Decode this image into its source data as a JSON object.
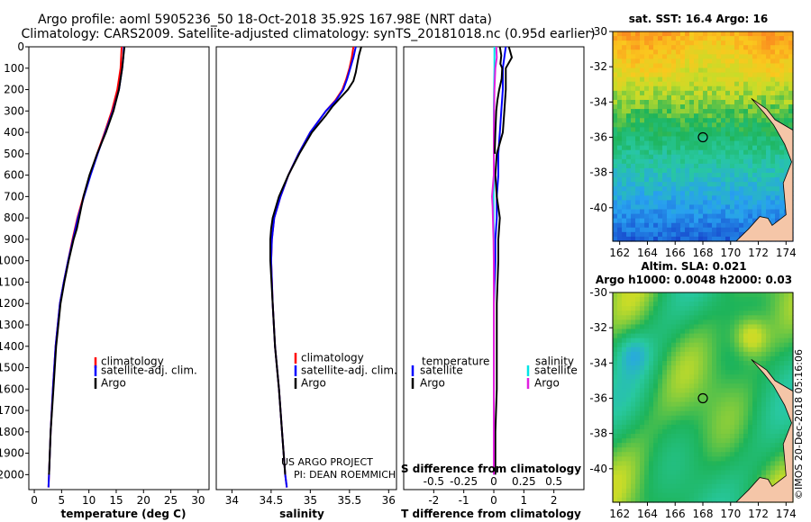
{
  "title_line1": "Argo profile: aoml 5905236_50 18-Oct-2018 35.92S 167.98E (NRT data)",
  "title_line2": "Climatology: CARS2009. Satellite-adjusted climatology: synTS_20181018.nc (0.95d earlier)",
  "credit_line1": "US ARGO PROJECT",
  "credit_line2": "PI: DEAN ROEMMICH",
  "imos_stamp": "©IMOS 20-Dec-2018 05:16:06",
  "colors": {
    "climatology": "#ff0000",
    "satellite": "#0000ff",
    "argo": "#000000",
    "sal_satellite": "#00e5e5",
    "sal_argo": "#e020e0",
    "land": "#f5c6a8"
  },
  "chart_data": [
    {
      "id": "temperature",
      "type": "line",
      "xlabel": "temperature (deg C)",
      "ylabel": "",
      "xlim": [
        -1,
        32
      ],
      "ylim": [
        2070,
        0
      ],
      "xticks": [
        0,
        5,
        10,
        15,
        20,
        25,
        30
      ],
      "xtick_labels": [
        "0",
        "5",
        "10",
        "15",
        "20",
        "25",
        "30"
      ],
      "yticks": [
        0,
        100,
        200,
        300,
        400,
        500,
        600,
        700,
        800,
        900,
        1000,
        1100,
        1200,
        1300,
        1400,
        1500,
        1600,
        1700,
        1800,
        1900,
        2000
      ],
      "ytick_labels": [
        "0",
        "100",
        "200",
        "300",
        "400",
        "500",
        "600",
        "700",
        "800",
        "900",
        "1000",
        "1100",
        "1200",
        "1300",
        "1400",
        "1500",
        "1600",
        "1700",
        "1800",
        "1900",
        "2000"
      ],
      "legend": [
        "climatology",
        "satellite-adj. clim.",
        "Argo"
      ],
      "series": [
        {
          "name": "climatology",
          "color": "#ff0000",
          "depth": [
            0,
            50,
            100,
            200,
            300,
            400,
            500,
            600,
            700,
            800,
            900,
            1000,
            1100,
            1200,
            1400,
            1600,
            1800,
            2000,
            2060
          ],
          "values": [
            16.0,
            15.9,
            15.8,
            15.2,
            14.2,
            12.9,
            11.5,
            10.2,
            9.0,
            7.9,
            7.0,
            6.2,
            5.4,
            4.7,
            3.9,
            3.4,
            3.0,
            2.7,
            2.6
          ]
        },
        {
          "name": "satellite-adj. clim.",
          "color": "#0000ff",
          "depth": [
            0,
            50,
            100,
            200,
            300,
            400,
            500,
            600,
            700,
            800,
            900,
            1000,
            1100,
            1200,
            1400,
            1600,
            1800,
            2000,
            2060
          ],
          "values": [
            16.4,
            16.3,
            16.1,
            15.5,
            14.4,
            13.0,
            11.6,
            10.3,
            9.1,
            8.0,
            7.1,
            6.2,
            5.4,
            4.7,
            3.9,
            3.4,
            3.0,
            2.7,
            2.6
          ]
        },
        {
          "name": "Argo",
          "color": "#000000",
          "depth": [
            0,
            50,
            100,
            200,
            300,
            400,
            500,
            600,
            700,
            800,
            850,
            900,
            1000,
            1100,
            1200,
            1400,
            1600,
            1800,
            2000
          ],
          "values": [
            16.5,
            16.3,
            16.1,
            15.5,
            14.5,
            13.1,
            11.5,
            10.1,
            9.0,
            8.2,
            7.8,
            7.2,
            6.3,
            5.5,
            4.8,
            4.0,
            3.5,
            3.0,
            2.7
          ]
        }
      ]
    },
    {
      "id": "salinity",
      "type": "line",
      "xlabel": "salinity",
      "ylabel": "",
      "xlim": [
        33.8,
        36.1
      ],
      "ylim": [
        2070,
        0
      ],
      "xticks": [
        34,
        34.5,
        35,
        35.5,
        36
      ],
      "xtick_labels": [
        "34",
        "34.5",
        "35",
        "35.5",
        "36"
      ],
      "legend": [
        "climatology",
        "satellite-adj. clim.",
        "Argo"
      ],
      "series": [
        {
          "name": "climatology",
          "color": "#ff0000",
          "depth": [
            0,
            50,
            100,
            150,
            200,
            250,
            300,
            400,
            500,
            600,
            700,
            800,
            900,
            1000,
            1200,
            1400,
            1600,
            1800,
            2000,
            2060
          ],
          "values": [
            35.55,
            35.53,
            35.5,
            35.46,
            35.41,
            35.32,
            35.2,
            35.0,
            34.85,
            34.72,
            34.62,
            34.54,
            34.51,
            34.5,
            34.52,
            34.55,
            34.6,
            34.64,
            34.68,
            34.7
          ]
        },
        {
          "name": "satellite-adj. clim.",
          "color": "#0000ff",
          "depth": [
            0,
            50,
            100,
            150,
            200,
            250,
            300,
            400,
            500,
            600,
            700,
            800,
            900,
            1000,
            1200,
            1400,
            1600,
            1800,
            2000,
            2060
          ],
          "values": [
            35.58,
            35.55,
            35.51,
            35.47,
            35.42,
            35.33,
            35.2,
            35.0,
            34.85,
            34.72,
            34.62,
            34.54,
            34.51,
            34.5,
            34.52,
            34.55,
            34.6,
            34.64,
            34.68,
            34.7
          ]
        },
        {
          "name": "Argo",
          "color": "#000000",
          "depth": [
            0,
            40,
            80,
            120,
            160,
            200,
            240,
            280,
            320,
            400,
            500,
            600,
            700,
            800,
            850,
            900,
            1000,
            1200,
            1400,
            1600,
            1800,
            2000
          ],
          "values": [
            35.65,
            35.62,
            35.6,
            35.58,
            35.55,
            35.48,
            35.38,
            35.28,
            35.2,
            35.02,
            34.86,
            34.72,
            34.6,
            34.52,
            34.5,
            34.49,
            34.49,
            34.52,
            34.55,
            34.6,
            34.64,
            34.68
          ]
        }
      ]
    },
    {
      "id": "difference",
      "type": "line",
      "xlabel": "T difference from climatology",
      "top_label": "S difference from climatology",
      "xlim": [
        -3,
        3
      ],
      "ylim": [
        2070,
        0
      ],
      "xticks": [
        -2,
        -1,
        0,
        1,
        2
      ],
      "xtick_labels": [
        "-2",
        "-1",
        "0",
        "1",
        "2"
      ],
      "top_xtick_labels": [
        "-0.5",
        "-0.25",
        "0",
        "0.25",
        "0.5"
      ],
      "legend_temperature_title": "temperature",
      "legend_salinity_title": "salinity",
      "legend_labels": [
        "satellite",
        "Argo",
        "satellite",
        "Argo"
      ],
      "series": [
        {
          "name": "T satellite",
          "color": "#0000ff",
          "depth": [
            0,
            100,
            200,
            300,
            400,
            500,
            600,
            700,
            800,
            900,
            1000,
            1200,
            1400,
            1600,
            1800,
            2000
          ],
          "values": [
            0.4,
            0.3,
            0.3,
            0.25,
            0.2,
            0.15,
            0.15,
            0.1,
            0.1,
            0.05,
            0.05,
            0.0,
            0.0,
            0.0,
            0.0,
            0.0
          ]
        },
        {
          "name": "T Argo",
          "color": "#000000",
          "depth": [
            0,
            50,
            100,
            200,
            300,
            400,
            500,
            600,
            700,
            800,
            900,
            1000,
            1200,
            1400,
            1600,
            1800,
            2000
          ],
          "values": [
            0.5,
            0.6,
            0.4,
            0.4,
            0.35,
            0.3,
            0.1,
            0.05,
            0.1,
            0.2,
            0.15,
            0.15,
            0.1,
            0.1,
            0.1,
            0.05,
            0.05
          ]
        },
        {
          "name": "S satellite",
          "color": "#00e5e5",
          "depth": [
            0,
            100,
            200,
            300,
            400,
            500,
            600,
            700,
            800,
            900,
            1000,
            1200,
            1400,
            1600,
            1800,
            2000
          ],
          "values": [
            0.02,
            0.02,
            0.01,
            0.0,
            0.0,
            0.0,
            0.0,
            -0.01,
            -0.01,
            0.0,
            0.0,
            0.0,
            0.0,
            0.0,
            0.0,
            0.0
          ]
        },
        {
          "name": "S Argo",
          "color": "#e020e0",
          "depth": [
            0,
            50,
            100,
            200,
            300,
            400,
            500,
            600,
            650,
            700,
            750,
            800,
            850,
            900,
            1000,
            1200,
            1400,
            1600,
            1800,
            2000
          ],
          "values": [
            0.08,
            0.1,
            0.05,
            0.02,
            0.01,
            0.0,
            0.0,
            0.0,
            -0.03,
            -0.06,
            -0.04,
            -0.03,
            -0.02,
            -0.01,
            0.0,
            0.0,
            0.0,
            0.0,
            0.0,
            0.0
          ]
        },
        {
          "name": "S Argo (black)",
          "color": "#000000",
          "depth": [
            0,
            40,
            80,
            100,
            150,
            200,
            250,
            300,
            400,
            500
          ],
          "values": [
            0.2,
            0.25,
            0.22,
            0.28,
            0.26,
            0.18,
            0.12,
            0.08,
            0.05,
            0.03
          ]
        }
      ]
    },
    {
      "id": "sst_map",
      "type": "heatmap",
      "title": "sat. SST: 16.4 Argo: 16",
      "xticks": [
        162,
        164,
        166,
        168,
        170,
        172,
        174
      ],
      "yticks": [
        -30,
        -32,
        -34,
        -36,
        -38,
        -40
      ],
      "xlim": [
        161.5,
        174.5
      ],
      "ylim": [
        -41.9,
        -30
      ],
      "marker": [
        168,
        -36
      ]
    },
    {
      "id": "sla_map",
      "type": "heatmap",
      "title_line1": "Altim. SLA: 0.021",
      "title_line2": "Argo h1000: 0.0048 h2000: 0.03",
      "xticks": [
        162,
        164,
        166,
        168,
        170,
        172,
        174
      ],
      "yticks": [
        -30,
        -32,
        -34,
        -36,
        -38,
        -40
      ],
      "xlim": [
        161.5,
        174.5
      ],
      "ylim": [
        -41.9,
        -30
      ],
      "marker": [
        168,
        -36
      ]
    }
  ]
}
